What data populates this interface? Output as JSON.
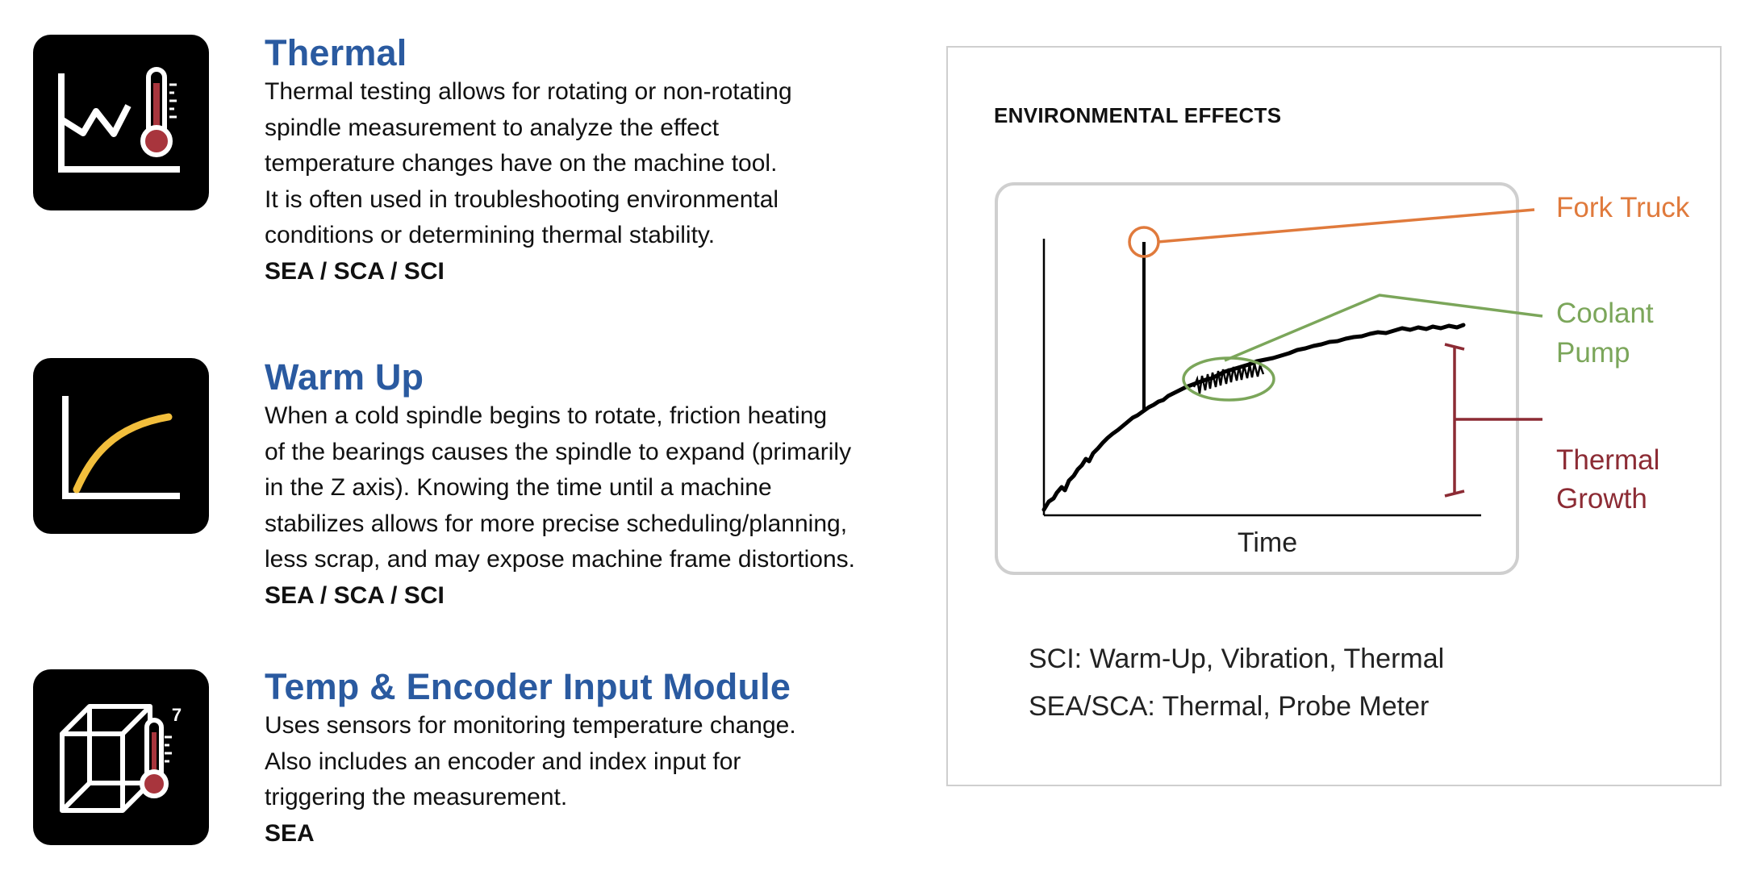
{
  "features": [
    {
      "icon": "thermal-chart-thermometer-icon",
      "title": "Thermal",
      "body_lines": [
        "Thermal testing allows for rotating or non-rotating",
        "spindle measurement to analyze the effect",
        "temperature changes have on the machine tool.",
        "It is often used in troubleshooting environmental",
        "conditions or determining thermal stability."
      ],
      "products": "SEA / SCA / SCI"
    },
    {
      "icon": "warm-up-curve-icon",
      "title": "Warm Up",
      "body_lines": [
        "When a cold spindle begins to rotate, friction heating",
        "of the bearings causes the spindle to expand (primarily",
        "in the Z axis). Knowing the time until a machine",
        "stabilizes allows for more precise scheduling/planning,",
        "less scrap, and may expose machine frame distortions."
      ],
      "products": "SEA / SCA / SCI"
    },
    {
      "icon": "cube-thermometer-icon",
      "title": "Temp & Encoder Input Module",
      "body_lines": [
        "Uses sensors for monitoring temperature change.",
        "Also includes an encoder and index input for",
        "triggering the measurement."
      ],
      "products": "SEA"
    }
  ],
  "panel": {
    "title": "ENVIRONMENTAL EFFECTS",
    "x_axis_label": "Time",
    "callouts": {
      "fork_truck": "Fork Truck",
      "coolant_pump": [
        "Coolant",
        "Pump"
      ],
      "thermal_growth": [
        "Thermal",
        "Growth"
      ]
    },
    "notes": [
      "SCI: Warm-Up, Vibration, Thermal",
      "SEA/SCA: Thermal, Probe Meter"
    ]
  },
  "cube_icon_label": "7",
  "colors": {
    "title_blue": "#2a5aa0",
    "fork_truck": "#e07a3c",
    "coolant_pump": "#7ba65a",
    "thermal_growth": "#8c2b34",
    "warm_up_curve": "#f2be3c",
    "thermometer_fill": "#a8353d"
  }
}
